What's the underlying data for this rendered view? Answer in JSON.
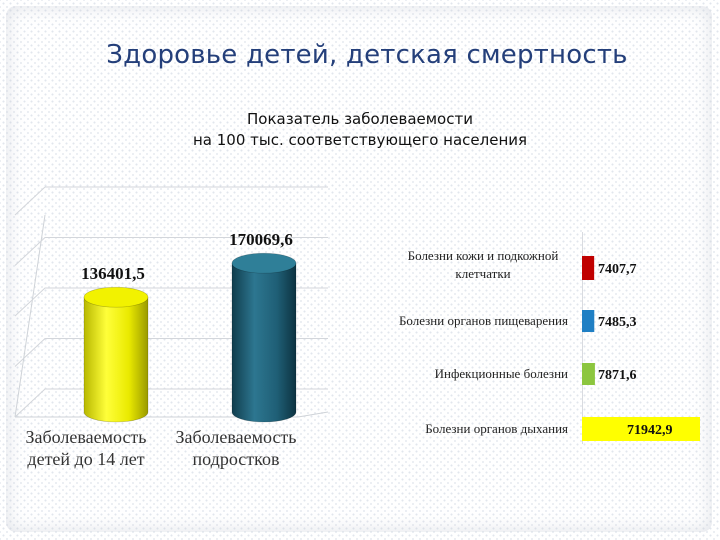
{
  "slide": {
    "title": "Здоровье детей, детская смертность",
    "subtitle_line1": "Показатель заболеваемости",
    "subtitle_line2": "на 100 тыс. соответствующего населения"
  },
  "colors": {
    "title": "#243f7a",
    "cylinder_children": "#f2f200",
    "cylinder_teens": "#1f5f76",
    "skin": "#c00000",
    "digestive": "#1f7fc4",
    "infectious": "#8cc63f",
    "respiratory": "#ffff00"
  },
  "chart_data": [
    {
      "type": "bar",
      "categories": [
        "Заболеваемость детей до 14 лет",
        "Заболеваемость подростков"
      ],
      "values": [
        136401.5,
        170069.6
      ],
      "value_labels": [
        "136401,5",
        "170069,6"
      ],
      "category_lines": [
        [
          "Заболеваемость",
          "детей до 14 лет"
        ],
        [
          "Заболеваемость",
          "подростков"
        ]
      ],
      "ylim": [
        0,
        200000
      ],
      "grid": true,
      "style": "3d-cylinder"
    },
    {
      "type": "bar",
      "orientation": "horizontal",
      "categories": [
        "Болезни кожи и подкожной клетчатки",
        "Болезни органов пищеварения",
        "Инфекционные болезни",
        "Болезни органов дыхания"
      ],
      "category_lines": [
        [
          "Болезни кожи и подкожной",
          "клетчатки"
        ],
        [
          "Болезни органов пищеварения"
        ],
        [
          "Инфекционные болезни"
        ],
        [
          "Болезни органов дыхания"
        ]
      ],
      "values": [
        7407.7,
        7485.3,
        7871.6,
        71942.9
      ],
      "value_labels": [
        "7407,7",
        "7485,3",
        "7871,6",
        "71942,9"
      ],
      "grid": false
    }
  ]
}
